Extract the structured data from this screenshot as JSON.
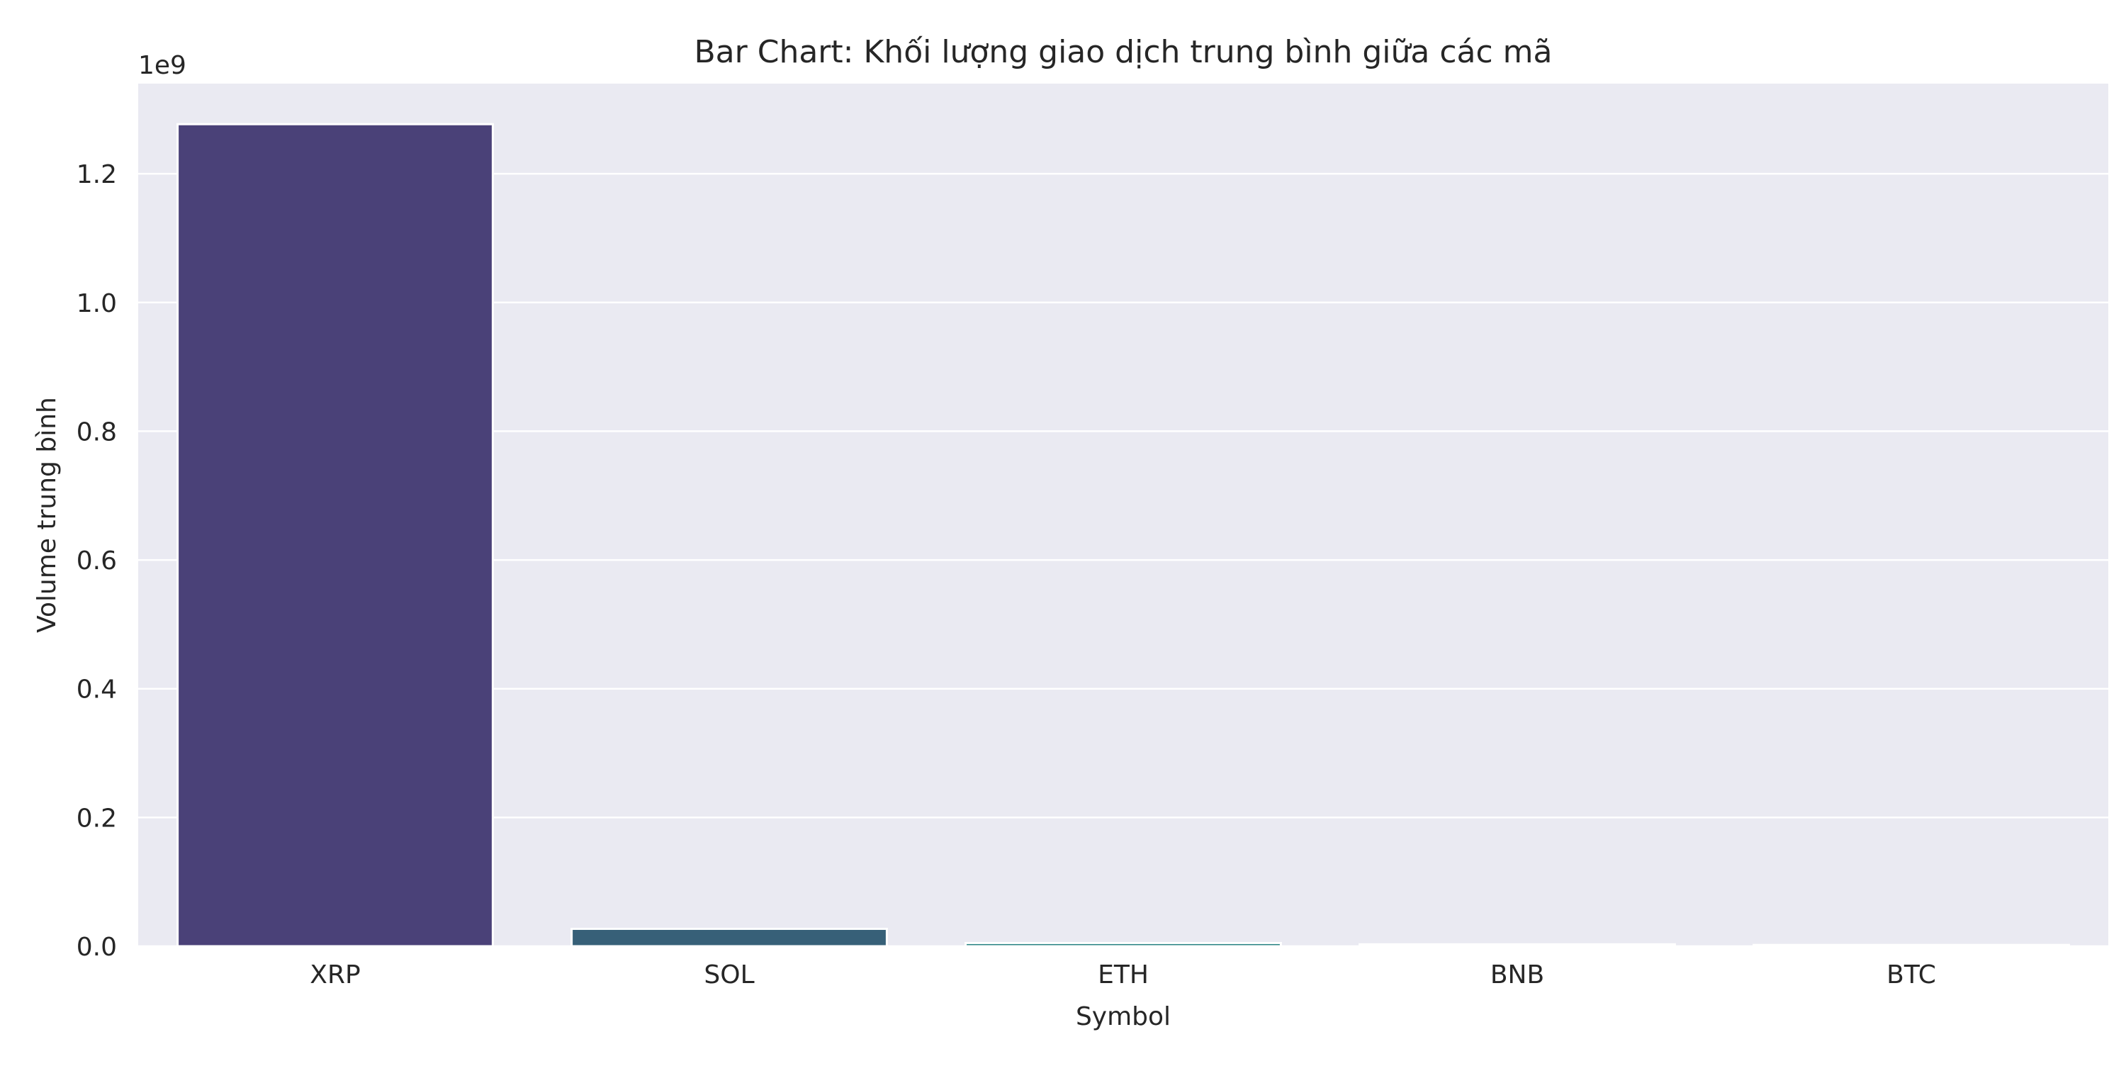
{
  "chart_data": {
    "type": "bar",
    "title": "Bar Chart: Khối lượng giao dịch trung bình giữa các mã",
    "xlabel": "Symbol",
    "ylabel": "Volume trung bình",
    "offset_label": "1e9",
    "categories": [
      "XRP",
      "SOL",
      "ETH",
      "BNB",
      "BTC"
    ],
    "values": [
      1.277,
      0.027,
      0.005,
      0.003,
      0.002
    ],
    "value_multiplier": 1000000000,
    "ylim": [
      0,
      1.34
    ],
    "yticks": [
      0.0,
      0.2,
      0.4,
      0.6,
      0.8,
      1.0,
      1.2
    ],
    "ytick_labels": [
      "0.0",
      "0.2",
      "0.4",
      "0.6",
      "0.8",
      "1.0",
      "1.2"
    ],
    "grid": true,
    "legend": "none",
    "colors": [
      "#4a4178",
      "#376078",
      "#2b8485",
      "#37a37f",
      "#6fc065"
    ],
    "background": "#eaeaf2",
    "grid_color": "#ffffff"
  }
}
